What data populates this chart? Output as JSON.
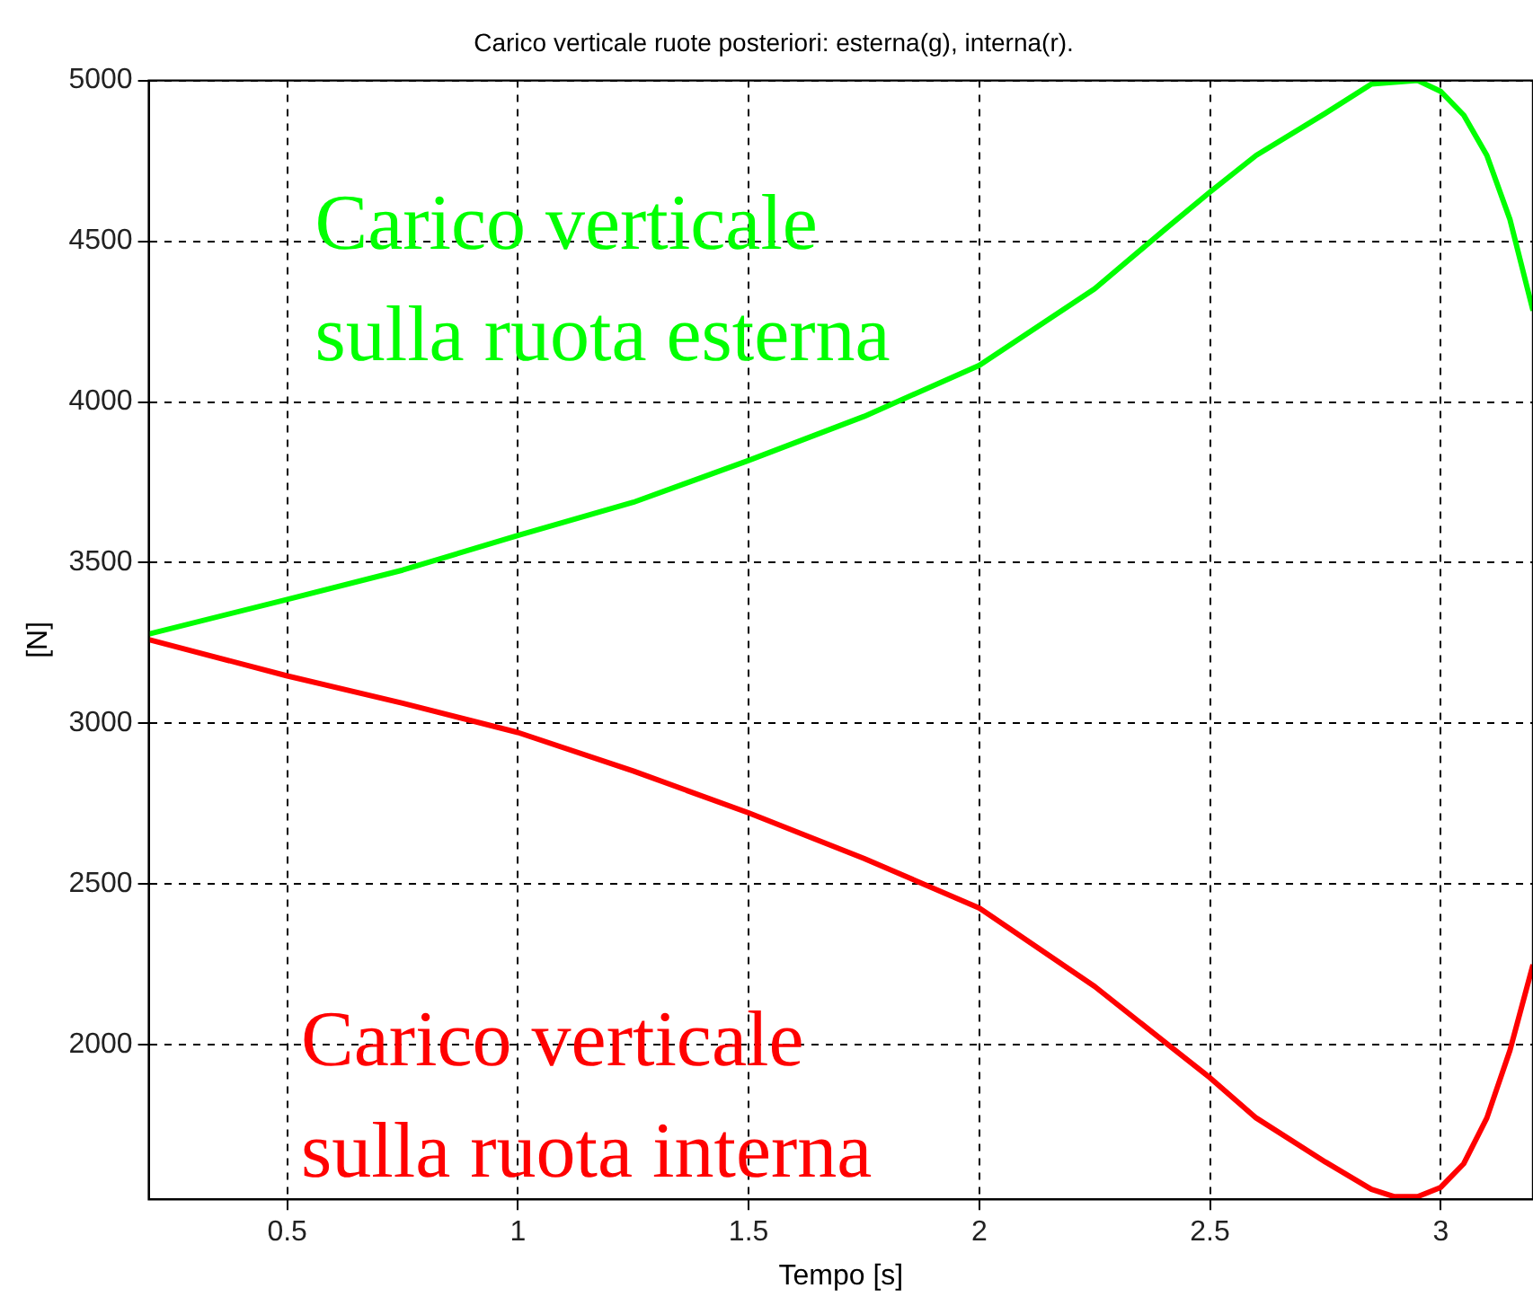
{
  "chart_data": {
    "type": "line",
    "title": "Carico verticale ruote posteriori: esterna(g), interna(r).",
    "xlabel": "Tempo [s]",
    "ylabel": "[N]",
    "xlim": [
      0.2,
      3.2
    ],
    "xticks": [
      0.5,
      1,
      1.5,
      2,
      2.5,
      3
    ],
    "ylim": [
      1520,
      5000
    ],
    "yticks": [
      2000,
      2500,
      3000,
      3500,
      4000,
      4500,
      5000
    ],
    "grid": true,
    "legend": false,
    "marker": "none",
    "line_style": "solid",
    "series": [
      {
        "color": "#00ff00",
        "x": [
          0.2,
          0.5,
          0.75,
          1.0,
          1.25,
          1.5,
          1.75,
          2.0,
          2.25,
          2.4,
          2.5,
          2.6,
          2.75,
          2.85,
          2.95,
          3.0,
          3.05,
          3.1,
          3.15,
          3.2
        ],
        "values": [
          3278,
          3386,
          3477,
          3585,
          3688,
          3818,
          3955,
          4114,
          4352,
          4534,
          4653,
          4767,
          4898,
          4989,
          5000,
          4966,
          4892,
          4767,
          4568,
          4284
        ]
      },
      {
        "color": "#ff0000",
        "x": [
          0.2,
          0.5,
          0.75,
          1.0,
          1.25,
          1.5,
          1.75,
          2.0,
          2.25,
          2.4,
          2.5,
          2.6,
          2.75,
          2.85,
          2.9,
          2.95,
          3.0,
          3.05,
          3.1,
          3.15,
          3.2
        ],
        "values": [
          3261,
          3148,
          3063,
          2972,
          2852,
          2722,
          2580,
          2426,
          2182,
          2011,
          1898,
          1773,
          1636,
          1551,
          1528,
          1528,
          1557,
          1631,
          1773,
          1983,
          2250
        ]
      }
    ],
    "annotations": [
      "Carico verticale\nsulla ruota esterna",
      "Carico verticale\nsulla ruota interna"
    ]
  }
}
